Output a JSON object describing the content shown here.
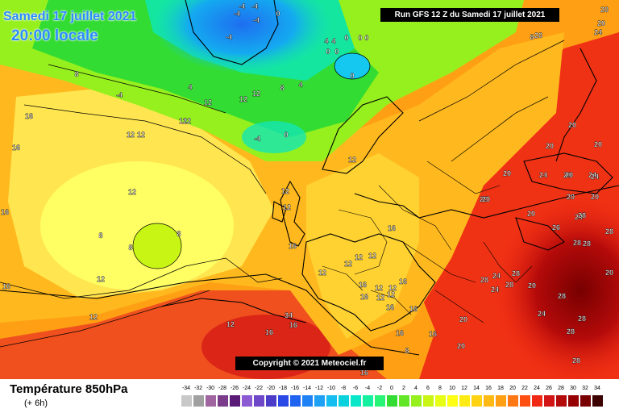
{
  "header": {
    "date_label": "Samedi 17 juillet 2021",
    "time_label": "20:00 locale",
    "run_label": "Run GFS 12 Z du Samedi 17 juillet 2021"
  },
  "copyright": "Copyright © 2021 Meteociel.fr",
  "footer": {
    "parameter": "Température 850hPa",
    "offset": "(+ 6h)"
  },
  "legend": {
    "values": [
      "-34",
      "-32",
      "-30",
      "-28",
      "-26",
      "-24",
      "-22",
      "-20",
      "-18",
      "-16",
      "-14",
      "-12",
      "-10",
      "-8",
      "-6",
      "-4",
      "-2",
      "0",
      "2",
      "4",
      "6",
      "8",
      "10",
      "12",
      "14",
      "16",
      "18",
      "20",
      "22",
      "24",
      "26",
      "28",
      "30",
      "32",
      "34"
    ],
    "colors": [
      "#c8c8c8",
      "#a0a0a0",
      "#a064a0",
      "#7c3c8c",
      "#5a1a78",
      "#8c5ad2",
      "#6e46c8",
      "#4a3cc8",
      "#2a48e6",
      "#1e64f0",
      "#1e82f5",
      "#1ea0f5",
      "#14bef0",
      "#0ad2dc",
      "#0ae6c8",
      "#14f0a0",
      "#28f578",
      "#32dc32",
      "#64e628",
      "#96f01e",
      "#c8f514",
      "#e6ff14",
      "#ffff14",
      "#ffeb14",
      "#ffd214",
      "#ffb914",
      "#ffa014",
      "#ff7814",
      "#ff5014",
      "#f02814",
      "#d21414",
      "#b40a0a",
      "#960000",
      "#780000",
      "#3c0000"
    ]
  },
  "map_labels": [
    {
      "t": "-4"
    },
    {
      "t": "-4"
    },
    {
      "t": "-4"
    },
    {
      "t": "0"
    },
    {
      "t": "-4"
    },
    {
      "t": "-4"
    },
    {
      "t": "0"
    },
    {
      "t": "4"
    },
    {
      "t": "4"
    },
    {
      "t": "0"
    },
    {
      "t": "0"
    },
    {
      "t": "0"
    },
    {
      "t": "0"
    },
    {
      "t": "0"
    },
    {
      "t": "8"
    },
    {
      "t": "12"
    },
    {
      "t": "12"
    },
    {
      "t": "12"
    },
    {
      "t": "12"
    },
    {
      "t": "8"
    },
    {
      "t": "4"
    },
    {
      "t": "4"
    },
    {
      "t": "0"
    },
    {
      "t": "-4"
    },
    {
      "t": "-4"
    },
    {
      "t": "8"
    },
    {
      "t": "8"
    },
    {
      "t": "12"
    },
    {
      "t": "12"
    },
    {
      "t": "12"
    },
    {
      "t": "16"
    },
    {
      "t": "16"
    },
    {
      "t": "16"
    },
    {
      "t": "16"
    },
    {
      "t": "16"
    },
    {
      "t": "16"
    },
    {
      "t": "12"
    },
    {
      "t": "12"
    },
    {
      "t": "12"
    },
    {
      "t": "8"
    },
    {
      "t": "8"
    },
    {
      "t": "12"
    },
    {
      "t": "12"
    },
    {
      "t": "12"
    },
    {
      "t": "12"
    },
    {
      "t": "12"
    },
    {
      "t": "12"
    },
    {
      "t": "16"
    },
    {
      "t": "16"
    },
    {
      "t": "20"
    },
    {
      "t": "16"
    },
    {
      "t": "16"
    },
    {
      "t": "16"
    },
    {
      "t": "16"
    },
    {
      "t": "12"
    },
    {
      "t": "12"
    },
    {
      "t": "12"
    },
    {
      "t": "12"
    },
    {
      "t": "12"
    },
    {
      "t": "16"
    },
    {
      "t": "20"
    },
    {
      "t": "20"
    },
    {
      "t": "20"
    },
    {
      "t": "20"
    },
    {
      "t": "20"
    },
    {
      "t": "24"
    },
    {
      "t": "20"
    },
    {
      "t": "20"
    },
    {
      "t": "24"
    },
    {
      "t": "24"
    },
    {
      "t": "26"
    },
    {
      "t": "28"
    },
    {
      "t": "28"
    },
    {
      "t": "28"
    },
    {
      "t": "28"
    },
    {
      "t": "24"
    },
    {
      "t": "24"
    },
    {
      "t": "28"
    },
    {
      "t": "28"
    },
    {
      "t": "28"
    },
    {
      "t": "28"
    },
    {
      "t": "28"
    },
    {
      "t": "28"
    },
    {
      "t": "24"
    },
    {
      "t": "20"
    },
    {
      "t": "20"
    },
    {
      "t": "20"
    },
    {
      "t": "20"
    },
    {
      "t": "20"
    },
    {
      "t": "24"
    },
    {
      "t": "28"
    },
    {
      "t": "28"
    },
    {
      "t": "28"
    },
    {
      "t": "20"
    },
    {
      "t": "20"
    },
    {
      "t": "24"
    },
    {
      "t": "24"
    },
    {
      "t": "34"
    },
    {
      "t": "16"
    },
    {
      "t": "16"
    },
    {
      "t": "8"
    },
    {
      "t": "12"
    },
    {
      "t": "16"
    },
    {
      "t": "16"
    },
    {
      "t": "24"
    },
    {
      "t": "20"
    },
    {
      "t": "28"
    },
    {
      "t": "24"
    },
    {
      "t": "28"
    },
    {
      "t": "20"
    },
    {
      "t": "28"
    }
  ]
}
